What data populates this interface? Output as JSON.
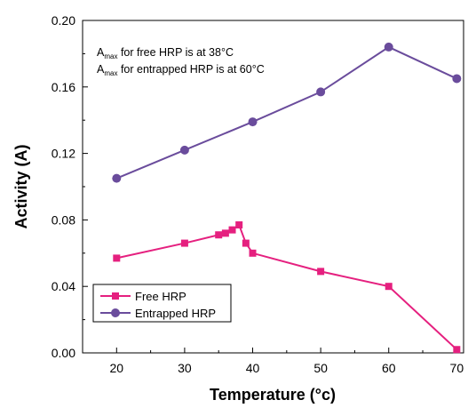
{
  "chart_data": {
    "type": "line",
    "xlabel": "Temperature (°c)",
    "ylabel": "Activity (A)",
    "xlim": [
      15,
      71
    ],
    "ylim": [
      0,
      0.2
    ],
    "xticks": [
      "20",
      "30",
      "40",
      "50",
      "60",
      "70"
    ],
    "yticks": [
      "0.00",
      "0.04",
      "0.08",
      "0.12",
      "0.16",
      "0.20"
    ],
    "legend_position": "lower-left",
    "annotations": [
      {
        "prefix": "A",
        "sub": "max",
        "text": " for free HRP is at 38°C"
      },
      {
        "prefix": "A",
        "sub": "max",
        "text": " for entrapped HRP is at 60°C"
      }
    ],
    "series": [
      {
        "name": "Free HRP",
        "color": "#e5207f",
        "marker": "square",
        "x": [
          20,
          30,
          35,
          36,
          37,
          38,
          39,
          40,
          50,
          60,
          70
        ],
        "y": [
          0.057,
          0.066,
          0.071,
          0.072,
          0.074,
          0.077,
          0.066,
          0.06,
          0.049,
          0.04,
          0.002
        ]
      },
      {
        "name": "Entrapped HRP",
        "color": "#6a4c9c",
        "marker": "circle",
        "x": [
          20,
          30,
          40,
          50,
          60,
          70
        ],
        "y": [
          0.105,
          0.122,
          0.139,
          0.157,
          0.184,
          0.165
        ]
      }
    ]
  }
}
